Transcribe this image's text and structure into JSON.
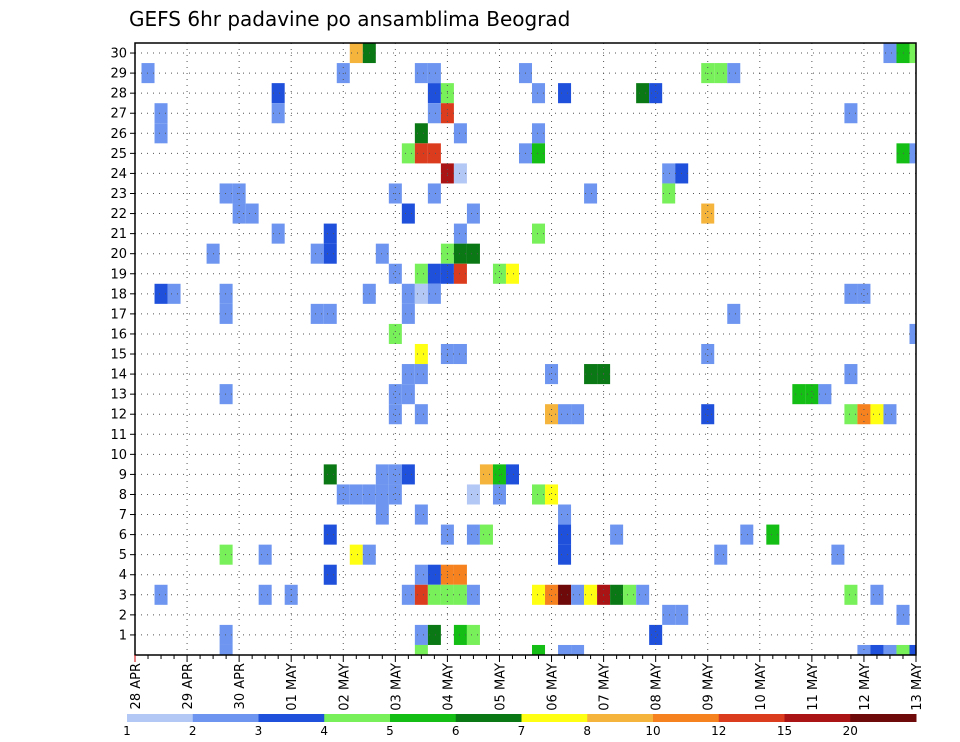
{
  "chart_data": {
    "type": "heatmap",
    "title": "GEFS 6hr padavine po ansamblima Beograd",
    "xlabel": "",
    "ylabel": "",
    "x_axis": {
      "unit": "6-hour steps from 28 APR 00Z",
      "range": [
        0,
        60
      ],
      "date_labels": [
        "28 APR",
        "29 APR",
        "30 APR",
        "01 MAY",
        "02 MAY",
        "03 MAY",
        "04 MAY",
        "05 MAY",
        "06 MAY",
        "07 MAY",
        "08 MAY",
        "09 MAY",
        "10 MAY",
        "11 MAY",
        "12 MAY",
        "13 MAY"
      ]
    },
    "y_axis": {
      "ensemble_members": [
        1,
        2,
        3,
        4,
        5,
        6,
        7,
        8,
        9,
        10,
        11,
        12,
        13,
        14,
        15,
        16,
        17,
        18,
        19,
        20,
        21,
        22,
        23,
        24,
        25,
        26,
        27,
        28,
        29,
        30
      ]
    },
    "grid": true,
    "colorbar": {
      "position": "bottom",
      "labels": [
        "1",
        "2",
        "3",
        "4",
        "5",
        "6",
        "7",
        "8",
        "10",
        "12",
        "15",
        "20"
      ],
      "colors": [
        "#b4c8f5",
        "#6e96f0",
        "#1e50dc",
        "#78f05a",
        "#14be14",
        "#0a7814",
        "#ffff14",
        "#f5b43c",
        "#f5821e",
        "#dc3c1e",
        "#aa1414",
        "#6e0a0a"
      ]
    },
    "cells": [
      {
        "x": 17,
        "y": 30,
        "v": 7
      },
      {
        "x": 18,
        "y": 30,
        "v": 5
      },
      {
        "x": 58,
        "y": 30,
        "v": 1
      },
      {
        "x": 59,
        "y": 30,
        "v": 4
      },
      {
        "x": 60,
        "y": 30,
        "v": 3
      },
      {
        "x": 1,
        "y": 29,
        "v": 1
      },
      {
        "x": 16,
        "y": 29,
        "v": 1
      },
      {
        "x": 22,
        "y": 29,
        "v": 1
      },
      {
        "x": 23,
        "y": 29,
        "v": 1
      },
      {
        "x": 30,
        "y": 29,
        "v": 1
      },
      {
        "x": 44,
        "y": 29,
        "v": 3
      },
      {
        "x": 45,
        "y": 29,
        "v": 3
      },
      {
        "x": 46,
        "y": 29,
        "v": 1
      },
      {
        "x": 11,
        "y": 28,
        "v": 2
      },
      {
        "x": 23,
        "y": 28,
        "v": 2
      },
      {
        "x": 24,
        "y": 28,
        "v": 3
      },
      {
        "x": 31,
        "y": 28,
        "v": 1
      },
      {
        "x": 33,
        "y": 28,
        "v": 2
      },
      {
        "x": 39,
        "y": 28,
        "v": 5
      },
      {
        "x": 40,
        "y": 28,
        "v": 2
      },
      {
        "x": 2,
        "y": 27,
        "v": 1
      },
      {
        "x": 11,
        "y": 27,
        "v": 1
      },
      {
        "x": 23,
        "y": 27,
        "v": 1
      },
      {
        "x": 24,
        "y": 27,
        "v": 9
      },
      {
        "x": 55,
        "y": 27,
        "v": 1
      },
      {
        "x": 2,
        "y": 26,
        "v": 1
      },
      {
        "x": 22,
        "y": 26,
        "v": 5
      },
      {
        "x": 25,
        "y": 26,
        "v": 1
      },
      {
        "x": 31,
        "y": 26,
        "v": 1
      },
      {
        "x": 21,
        "y": 25,
        "v": 3
      },
      {
        "x": 22,
        "y": 25,
        "v": 9
      },
      {
        "x": 23,
        "y": 25,
        "v": 9
      },
      {
        "x": 30,
        "y": 25,
        "v": 1
      },
      {
        "x": 31,
        "y": 25,
        "v": 4
      },
      {
        "x": 59,
        "y": 25,
        "v": 4
      },
      {
        "x": 60,
        "y": 25,
        "v": 1
      },
      {
        "x": 24,
        "y": 24,
        "v": 10
      },
      {
        "x": 25,
        "y": 24,
        "v": 12
      },
      {
        "x": 41,
        "y": 24,
        "v": 1
      },
      {
        "x": 42,
        "y": 24,
        "v": 2
      },
      {
        "x": 7,
        "y": 23,
        "v": 1
      },
      {
        "x": 8,
        "y": 23,
        "v": 1
      },
      {
        "x": 20,
        "y": 23,
        "v": 1
      },
      {
        "x": 23,
        "y": 23,
        "v": 1
      },
      {
        "x": 35,
        "y": 23,
        "v": 1
      },
      {
        "x": 41,
        "y": 23,
        "v": 3
      },
      {
        "x": 8,
        "y": 22,
        "v": 1
      },
      {
        "x": 9,
        "y": 22,
        "v": 1
      },
      {
        "x": 21,
        "y": 22,
        "v": 2
      },
      {
        "x": 26,
        "y": 22,
        "v": 1
      },
      {
        "x": 44,
        "y": 22,
        "v": 7
      },
      {
        "x": 11,
        "y": 21,
        "v": 1
      },
      {
        "x": 15,
        "y": 21,
        "v": 2
      },
      {
        "x": 25,
        "y": 21,
        "v": 1
      },
      {
        "x": 31,
        "y": 21,
        "v": 3
      },
      {
        "x": 6,
        "y": 20,
        "v": 1
      },
      {
        "x": 14,
        "y": 20,
        "v": 1
      },
      {
        "x": 15,
        "y": 20,
        "v": 2
      },
      {
        "x": 19,
        "y": 20,
        "v": 1
      },
      {
        "x": 24,
        "y": 20,
        "v": 3
      },
      {
        "x": 25,
        "y": 20,
        "v": 5
      },
      {
        "x": 26,
        "y": 20,
        "v": 5
      },
      {
        "x": 20,
        "y": 19,
        "v": 1
      },
      {
        "x": 22,
        "y": 19,
        "v": 3
      },
      {
        "x": 23,
        "y": 19,
        "v": 2
      },
      {
        "x": 24,
        "y": 19,
        "v": 2
      },
      {
        "x": 25,
        "y": 19,
        "v": 9
      },
      {
        "x": 28,
        "y": 19,
        "v": 3
      },
      {
        "x": 29,
        "y": 19,
        "v": 6
      },
      {
        "x": 2,
        "y": 18,
        "v": 2
      },
      {
        "x": 3,
        "y": 18,
        "v": 1
      },
      {
        "x": 7,
        "y": 18,
        "v": 1
      },
      {
        "x": 18,
        "y": 18,
        "v": 1
      },
      {
        "x": 21,
        "y": 18,
        "v": 1
      },
      {
        "x": 22,
        "y": 18,
        "v": 12
      },
      {
        "x": 23,
        "y": 18,
        "v": 1
      },
      {
        "x": 55,
        "y": 18,
        "v": 1
      },
      {
        "x": 56,
        "y": 18,
        "v": 1
      },
      {
        "x": 7,
        "y": 17,
        "v": 1
      },
      {
        "x": 14,
        "y": 17,
        "v": 1
      },
      {
        "x": 15,
        "y": 17,
        "v": 1
      },
      {
        "x": 21,
        "y": 17,
        "v": 1
      },
      {
        "x": 46,
        "y": 17,
        "v": 1
      },
      {
        "x": 20,
        "y": 16,
        "v": 3
      },
      {
        "x": 60,
        "y": 16,
        "v": 1
      },
      {
        "x": 22,
        "y": 15,
        "v": 6
      },
      {
        "x": 24,
        "y": 15,
        "v": 1
      },
      {
        "x": 25,
        "y": 15,
        "v": 1
      },
      {
        "x": 44,
        "y": 15,
        "v": 1
      },
      {
        "x": 21,
        "y": 14,
        "v": 1
      },
      {
        "x": 22,
        "y": 14,
        "v": 1
      },
      {
        "x": 32,
        "y": 14,
        "v": 1
      },
      {
        "x": 35,
        "y": 14,
        "v": 5
      },
      {
        "x": 36,
        "y": 14,
        "v": 5
      },
      {
        "x": 55,
        "y": 14,
        "v": 1
      },
      {
        "x": 7,
        "y": 13,
        "v": 1
      },
      {
        "x": 20,
        "y": 13,
        "v": 1
      },
      {
        "x": 21,
        "y": 13,
        "v": 1
      },
      {
        "x": 51,
        "y": 13,
        "v": 4
      },
      {
        "x": 52,
        "y": 13,
        "v": 4
      },
      {
        "x": 53,
        "y": 13,
        "v": 1
      },
      {
        "x": 20,
        "y": 12,
        "v": 1
      },
      {
        "x": 22,
        "y": 12,
        "v": 1
      },
      {
        "x": 32,
        "y": 12,
        "v": 7
      },
      {
        "x": 33,
        "y": 12,
        "v": 1
      },
      {
        "x": 34,
        "y": 12,
        "v": 1
      },
      {
        "x": 44,
        "y": 12,
        "v": 2
      },
      {
        "x": 55,
        "y": 12,
        "v": 3
      },
      {
        "x": 56,
        "y": 12,
        "v": 8
      },
      {
        "x": 57,
        "y": 12,
        "v": 6
      },
      {
        "x": 58,
        "y": 12,
        "v": 1
      },
      {
        "x": 15,
        "y": 9,
        "v": 5
      },
      {
        "x": 19,
        "y": 9,
        "v": 1
      },
      {
        "x": 20,
        "y": 9,
        "v": 1
      },
      {
        "x": 21,
        "y": 9,
        "v": 2
      },
      {
        "x": 27,
        "y": 9,
        "v": 7
      },
      {
        "x": 28,
        "y": 9,
        "v": 4
      },
      {
        "x": 29,
        "y": 9,
        "v": 2
      },
      {
        "x": 16,
        "y": 8,
        "v": 1
      },
      {
        "x": 17,
        "y": 8,
        "v": 1
      },
      {
        "x": 18,
        "y": 8,
        "v": 1
      },
      {
        "x": 19,
        "y": 8,
        "v": 1
      },
      {
        "x": 20,
        "y": 8,
        "v": 1
      },
      {
        "x": 26,
        "y": 8,
        "v": 12
      },
      {
        "x": 28,
        "y": 8,
        "v": 1
      },
      {
        "x": 31,
        "y": 8,
        "v": 3
      },
      {
        "x": 32,
        "y": 8,
        "v": 6
      },
      {
        "x": 19,
        "y": 7,
        "v": 1
      },
      {
        "x": 22,
        "y": 7,
        "v": 1
      },
      {
        "x": 33,
        "y": 7,
        "v": 1
      },
      {
        "x": 15,
        "y": 6,
        "v": 2
      },
      {
        "x": 24,
        "y": 6,
        "v": 1
      },
      {
        "x": 26,
        "y": 6,
        "v": 1
      },
      {
        "x": 27,
        "y": 6,
        "v": 3
      },
      {
        "x": 33,
        "y": 6,
        "v": 2
      },
      {
        "x": 37,
        "y": 6,
        "v": 1
      },
      {
        "x": 47,
        "y": 6,
        "v": 1
      },
      {
        "x": 49,
        "y": 6,
        "v": 4
      },
      {
        "x": 7,
        "y": 5,
        "v": 3
      },
      {
        "x": 10,
        "y": 5,
        "v": 1
      },
      {
        "x": 17,
        "y": 5,
        "v": 6
      },
      {
        "x": 18,
        "y": 5,
        "v": 1
      },
      {
        "x": 33,
        "y": 5,
        "v": 2
      },
      {
        "x": 45,
        "y": 5,
        "v": 1
      },
      {
        "x": 54,
        "y": 5,
        "v": 1
      },
      {
        "x": 15,
        "y": 4,
        "v": 2
      },
      {
        "x": 22,
        "y": 4,
        "v": 1
      },
      {
        "x": 23,
        "y": 4,
        "v": 2
      },
      {
        "x": 24,
        "y": 4,
        "v": 8
      },
      {
        "x": 25,
        "y": 4,
        "v": 8
      },
      {
        "x": 2,
        "y": 3,
        "v": 1
      },
      {
        "x": 10,
        "y": 3,
        "v": 1
      },
      {
        "x": 12,
        "y": 3,
        "v": 1
      },
      {
        "x": 21,
        "y": 3,
        "v": 1
      },
      {
        "x": 22,
        "y": 3,
        "v": 9
      },
      {
        "x": 23,
        "y": 3,
        "v": 3
      },
      {
        "x": 24,
        "y": 3,
        "v": 3
      },
      {
        "x": 25,
        "y": 3,
        "v": 3
      },
      {
        "x": 26,
        "y": 3,
        "v": 1
      },
      {
        "x": 31,
        "y": 3,
        "v": 6
      },
      {
        "x": 32,
        "y": 3,
        "v": 8
      },
      {
        "x": 33,
        "y": 3,
        "v": 11
      },
      {
        "x": 34,
        "y": 3,
        "v": 1
      },
      {
        "x": 35,
        "y": 3,
        "v": 6
      },
      {
        "x": 36,
        "y": 3,
        "v": 10
      },
      {
        "x": 37,
        "y": 3,
        "v": 5
      },
      {
        "x": 38,
        "y": 3,
        "v": 3
      },
      {
        "x": 39,
        "y": 3,
        "v": 1
      },
      {
        "x": 55,
        "y": 3,
        "v": 3
      },
      {
        "x": 57,
        "y": 3,
        "v": 1
      },
      {
        "x": 41,
        "y": 2,
        "v": 1
      },
      {
        "x": 42,
        "y": 2,
        "v": 1
      },
      {
        "x": 59,
        "y": 2,
        "v": 1
      },
      {
        "x": 7,
        "y": 1,
        "v": 1
      },
      {
        "x": 22,
        "y": 1,
        "v": 1
      },
      {
        "x": 23,
        "y": 1,
        "v": 5
      },
      {
        "x": 25,
        "y": 1,
        "v": 4
      },
      {
        "x": 26,
        "y": 1,
        "v": 3
      },
      {
        "x": 40,
        "y": 1,
        "v": 2
      },
      {
        "x": 7,
        "y": 0,
        "v": 1
      },
      {
        "x": 22,
        "y": 0,
        "v": 3
      },
      {
        "x": 31,
        "y": 0,
        "v": 4
      },
      {
        "x": 33,
        "y": 0,
        "v": 1
      },
      {
        "x": 34,
        "y": 0,
        "v": 1
      },
      {
        "x": 56,
        "y": 0,
        "v": 1
      },
      {
        "x": 57,
        "y": 0,
        "v": 2
      },
      {
        "x": 58,
        "y": 0,
        "v": 1
      },
      {
        "x": 59,
        "y": 0,
        "v": 3
      },
      {
        "x": 60,
        "y": 0,
        "v": 2
      }
    ]
  }
}
